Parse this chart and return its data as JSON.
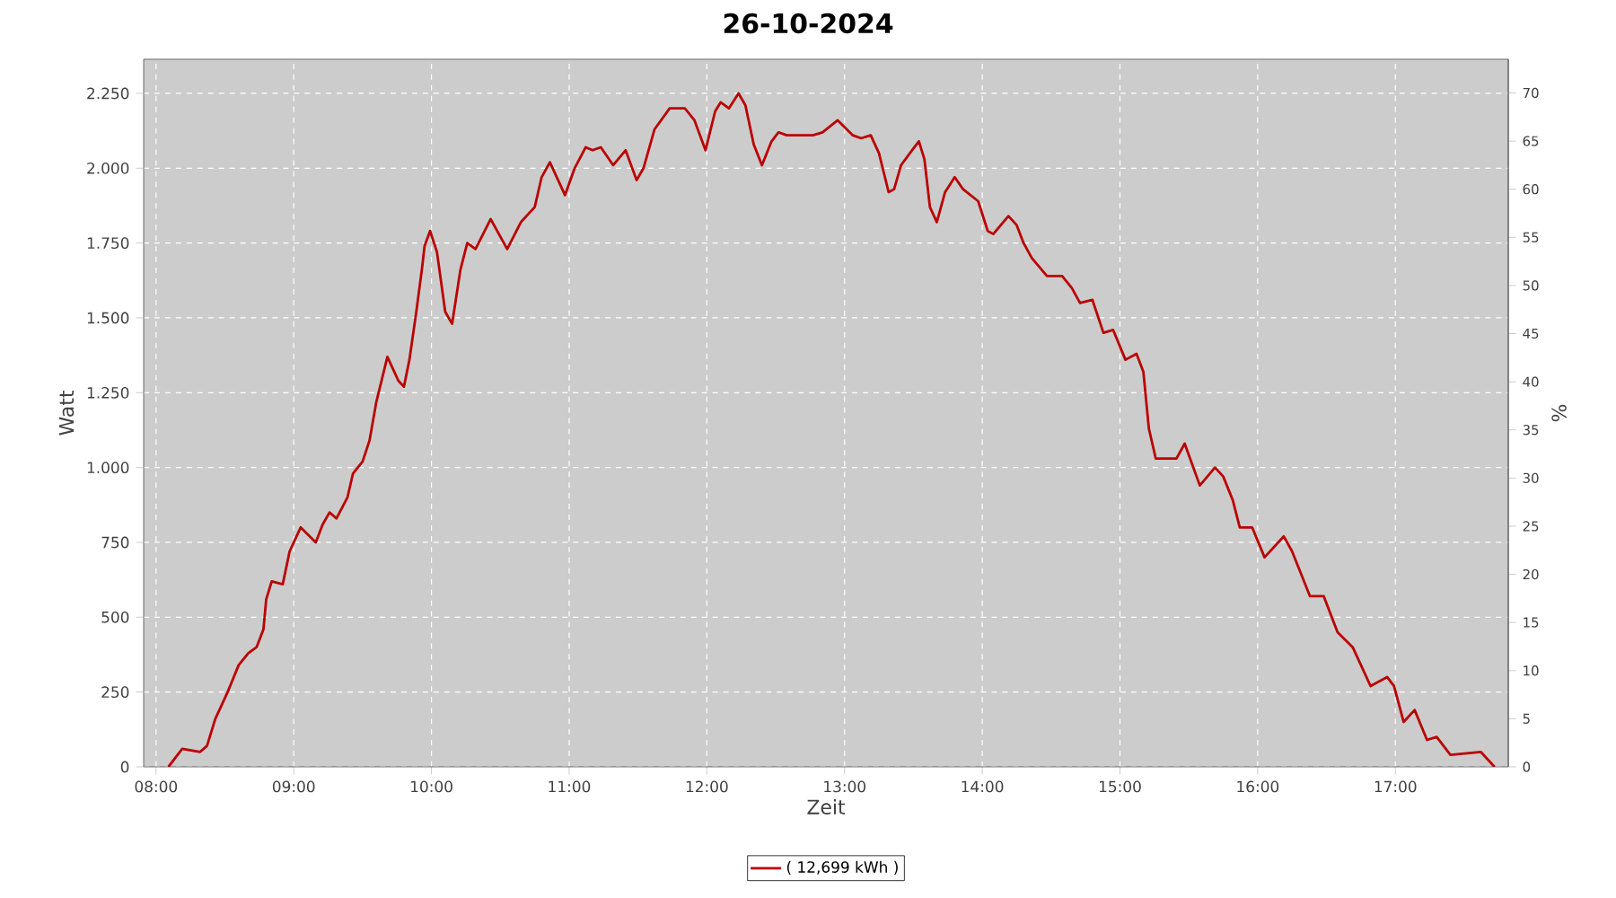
{
  "chart_data": {
    "type": "line",
    "title": "26-10-2024",
    "xlabel": "Zeit",
    "ylabel": "Watt",
    "y2label": "%",
    "x": [
      8.09,
      8.19,
      8.32,
      8.37,
      8.43,
      8.52,
      8.6,
      8.67,
      8.73,
      8.78,
      8.8,
      8.84,
      8.92,
      8.97,
      9.05,
      9.16,
      9.21,
      9.26,
      9.31,
      9.39,
      9.43,
      9.5,
      9.55,
      9.6,
      9.68,
      9.76,
      9.8,
      9.84,
      9.89,
      9.93,
      9.95,
      9.99,
      10.04,
      10.1,
      10.15,
      10.21,
      10.26,
      10.32,
      10.43,
      10.55,
      10.65,
      10.75,
      10.8,
      10.86,
      10.97,
      11.04,
      11.12,
      11.17,
      11.23,
      11.32,
      11.41,
      11.49,
      11.54,
      11.62,
      11.73,
      11.84,
      11.91,
      11.99,
      12.06,
      12.1,
      12.16,
      12.23,
      12.28,
      12.34,
      12.4,
      12.47,
      12.52,
      12.58,
      12.77,
      12.84,
      12.95,
      13.06,
      13.12,
      13.19,
      13.25,
      13.32,
      13.36,
      13.41,
      13.49,
      13.54,
      13.58,
      13.62,
      13.67,
      13.73,
      13.8,
      13.86,
      13.97,
      14.04,
      14.08,
      14.19,
      14.25,
      14.3,
      14.36,
      14.47,
      14.58,
      14.65,
      14.71,
      14.8,
      14.88,
      14.95,
      15.04,
      15.12,
      15.17,
      15.21,
      15.26,
      15.41,
      15.47,
      15.58,
      15.69,
      15.75,
      15.82,
      15.87,
      15.96,
      16.05,
      16.19,
      16.25,
      16.38,
      16.48,
      16.58,
      16.69,
      16.82,
      16.94,
      16.99,
      17.06,
      17.14,
      17.23,
      17.3,
      17.4,
      17.62,
      17.72
    ],
    "series": [
      {
        "name": "( 12,699 kWh )",
        "color": "#bb0000",
        "values": [
          0,
          60,
          50,
          70,
          160,
          250,
          340,
          380,
          400,
          460,
          560,
          620,
          610,
          720,
          800,
          750,
          810,
          850,
          830,
          900,
          980,
          1020,
          1090,
          1220,
          1370,
          1290,
          1270,
          1360,
          1520,
          1660,
          1740,
          1790,
          1720,
          1520,
          1480,
          1660,
          1750,
          1730,
          1830,
          1730,
          1820,
          1870,
          1970,
          2020,
          1910,
          2000,
          2070,
          2060,
          2070,
          2010,
          2060,
          1960,
          2000,
          2130,
          2200,
          2200,
          2160,
          2060,
          2190,
          2220,
          2200,
          2250,
          2210,
          2080,
          2010,
          2090,
          2120,
          2110,
          2110,
          2120,
          2160,
          2110,
          2100,
          2110,
          2050,
          1920,
          1930,
          2010,
          2060,
          2090,
          2030,
          1870,
          1820,
          1920,
          1970,
          1930,
          1890,
          1790,
          1780,
          1840,
          1810,
          1750,
          1700,
          1640,
          1640,
          1600,
          1550,
          1560,
          1450,
          1460,
          1360,
          1380,
          1320,
          1130,
          1030,
          1030,
          1080,
          940,
          1000,
          970,
          890,
          800,
          800,
          700,
          770,
          720,
          570,
          570,
          450,
          400,
          270,
          300,
          270,
          150,
          190,
          90,
          100,
          40,
          50,
          0
        ]
      }
    ],
    "xlim": [
      7.91,
      17.82
    ],
    "xticks": [
      {
        "value": 8,
        "label": "08:00"
      },
      {
        "value": 9,
        "label": "09:00"
      },
      {
        "value": 10,
        "label": "10:00"
      },
      {
        "value": 11,
        "label": "11:00"
      },
      {
        "value": 12,
        "label": "12:00"
      },
      {
        "value": 13,
        "label": "13:00"
      },
      {
        "value": 14,
        "label": "14:00"
      },
      {
        "value": 15,
        "label": "15:00"
      },
      {
        "value": 16,
        "label": "16:00"
      },
      {
        "value": 17,
        "label": "17:00"
      }
    ],
    "ylim": [
      0,
      2364
    ],
    "yticks": [
      0,
      250,
      500,
      750,
      {
        "value": 1000,
        "label": "1.000"
      },
      {
        "value": 1250,
        "label": "1.250"
      },
      {
        "value": 1500,
        "label": "1.500"
      },
      {
        "value": 1750,
        "label": "1.750"
      },
      {
        "value": 2000,
        "label": "2.000"
      },
      {
        "value": 2250,
        "label": "2.250"
      }
    ],
    "y2lim": [
      0,
      73.5
    ],
    "y2ticks": [
      0,
      5,
      10,
      15,
      20,
      25,
      30,
      35,
      40,
      45,
      50,
      55,
      60,
      65,
      70
    ],
    "grid": true,
    "legend": "bottom",
    "marker": "none",
    "line_style": "solid"
  }
}
